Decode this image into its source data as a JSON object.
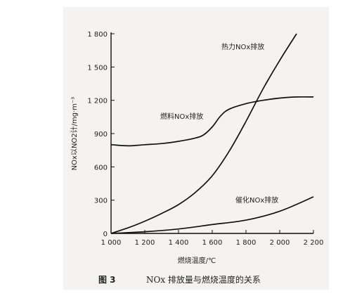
{
  "chart_data": {
    "type": "line",
    "xlabel": "燃烧温度/℃",
    "ylabel": "NOx以NO2计/mg·m⁻³",
    "xlim": [
      1000,
      2200
    ],
    "ylim": [
      0,
      1800
    ],
    "x_ticks": [
      1000,
      1200,
      1400,
      1600,
      1800,
      2000,
      2200
    ],
    "x_tick_labels": [
      "1 000",
      "1 200",
      "1 400",
      "1 600",
      "1 800",
      "2 000",
      "2 200"
    ],
    "y_ticks": [
      0,
      300,
      600,
      900,
      1200,
      1500,
      1800
    ],
    "y_tick_labels": [
      "0",
      "300",
      "600",
      "900",
      "1 200",
      "1 500",
      "1 800"
    ],
    "grid": false,
    "series": [
      {
        "name": "热力NOx排放",
        "color": "#111111",
        "x": [
          1000,
          1100,
          1200,
          1300,
          1400,
          1500,
          1600,
          1700,
          1800,
          1900,
          2000,
          2100
        ],
        "values": [
          0,
          50,
          110,
          180,
          260,
          370,
          520,
          740,
          1010,
          1300,
          1560,
          1800
        ]
      },
      {
        "name": "燃料NOx排放",
        "color": "#111111",
        "x": [
          1000,
          1100,
          1200,
          1300,
          1400,
          1500,
          1550,
          1600,
          1650,
          1700,
          1800,
          1900,
          2000,
          2100,
          2200
        ],
        "values": [
          800,
          790,
          800,
          810,
          830,
          860,
          890,
          960,
          1060,
          1120,
          1170,
          1200,
          1220,
          1230,
          1230
        ]
      },
      {
        "name": "催化NOx排放",
        "color": "#111111",
        "x": [
          1000,
          1200,
          1400,
          1600,
          1800,
          2000,
          2200
        ],
        "values": [
          0,
          15,
          40,
          80,
          120,
          200,
          330
        ]
      }
    ]
  },
  "caption": {
    "number": "图 3",
    "text": "NOx 排放量与燃烧温度的关系"
  }
}
